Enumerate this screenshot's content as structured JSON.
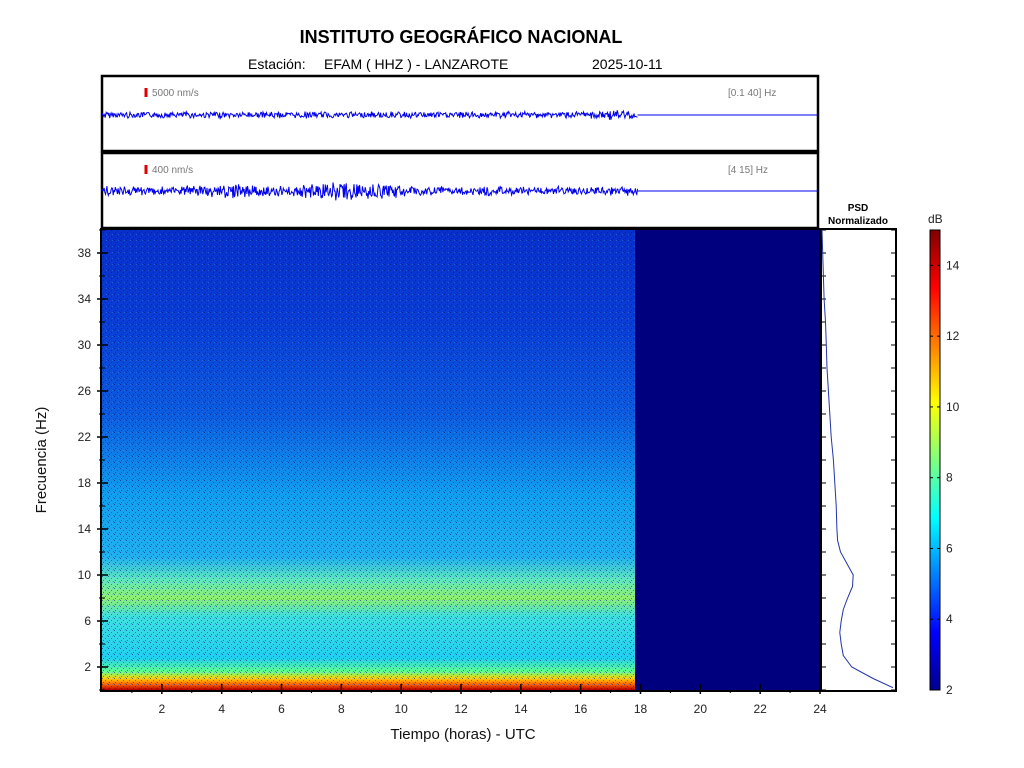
{
  "header": {
    "title": "INSTITUTO GEOGRÁFICO NACIONAL",
    "station_prefix": "Estación:",
    "station": "EFAM ( HHZ ) - LANZAROTE",
    "date": "2025-10-11"
  },
  "traces": [
    {
      "scale_label": "5000 nm/s",
      "band_label": "[0.1 40] Hz"
    },
    {
      "scale_label": "400 nm/s",
      "band_label": "[4 15] Hz"
    }
  ],
  "psd_panel": {
    "title_line1": "PSD",
    "title_line2": "Normalizado"
  },
  "colorbar": {
    "unit": "dB",
    "range": [
      2,
      15
    ],
    "ticks": [
      2,
      4,
      6,
      8,
      10,
      12,
      14
    ],
    "colormap": "jet"
  },
  "colors": {
    "trace": "#0000ee",
    "empty_region": "#00007f",
    "psd_line": "#2233aa"
  },
  "chart_data": {
    "type": "heatmap",
    "title": "INSTITUTO GEOGRÁFICO NACIONAL",
    "xlabel": "Tiempo (horas) - UTC",
    "ylabel": "Frecuencia  (Hz)",
    "xlim": [
      0,
      24
    ],
    "ylim": [
      0,
      40
    ],
    "xticks": [
      2,
      4,
      6,
      8,
      10,
      12,
      14,
      16,
      18,
      20,
      22,
      24
    ],
    "yticks": [
      2,
      6,
      10,
      14,
      18,
      22,
      26,
      30,
      34,
      38
    ],
    "data_end_hour": 17.9,
    "psd_profile": {
      "freq_hz": [
        0.2,
        1,
        2,
        3,
        4,
        5,
        6,
        7,
        8,
        9,
        10,
        11,
        12,
        13,
        14,
        16,
        18,
        20,
        22,
        24,
        26,
        28,
        30,
        32,
        34,
        36,
        38,
        40
      ],
      "normalized": [
        1.0,
        0.72,
        0.42,
        0.3,
        0.27,
        0.25,
        0.27,
        0.3,
        0.36,
        0.43,
        0.44,
        0.35,
        0.26,
        0.22,
        0.21,
        0.2,
        0.18,
        0.16,
        0.13,
        0.11,
        0.09,
        0.07,
        0.06,
        0.05,
        0.03,
        0.02,
        0.01,
        0.0
      ]
    }
  }
}
